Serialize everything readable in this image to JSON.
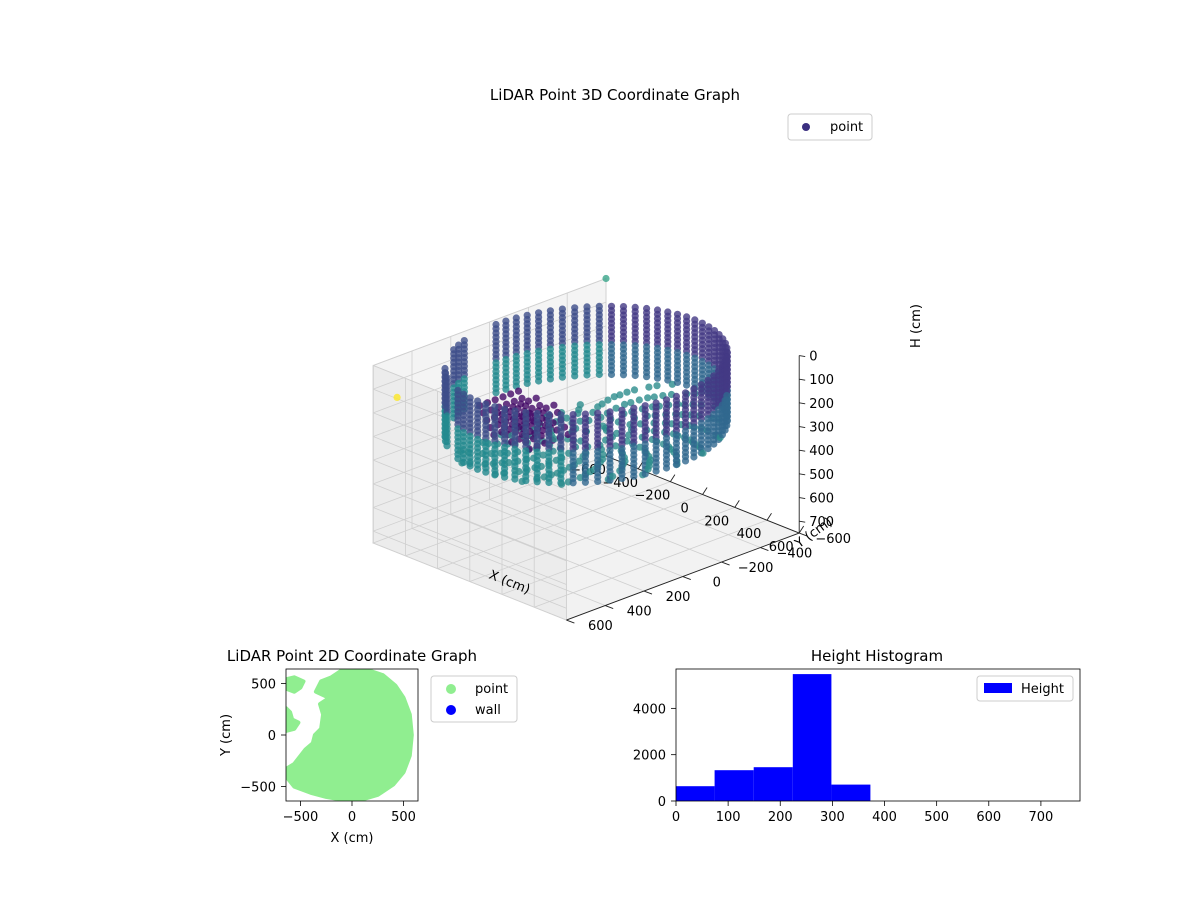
{
  "chart_data": [
    {
      "type": "scatter3d",
      "title": "LiDAR Point 3D Coordinate Graph",
      "xlabel": "X (cm)",
      "ylabel": "Y (cm)",
      "zlabel": "H (cm)",
      "xlim": [
        -600,
        600
      ],
      "ylim": [
        -600,
        600
      ],
      "zlim": [
        750,
        0
      ],
      "zinverted": true,
      "xticks": [
        -600,
        -400,
        -200,
        0,
        200,
        400,
        600
      ],
      "yticks": [
        -600,
        -400,
        -200,
        0,
        200,
        400,
        600
      ],
      "zticks": [
        0,
        100,
        200,
        300,
        400,
        500,
        600,
        700
      ],
      "grid": true,
      "colormap": "viridis",
      "legend": {
        "placement": "upper-right",
        "entries": [
          {
            "label": "point",
            "color": "#3b2f80"
          }
        ]
      },
      "ring": {
        "radius_cm": 560,
        "height_range_cm": [
          0,
          300
        ],
        "front_color": "#3b3f87",
        "back_color": "#26838e"
      },
      "outliers": [
        {
          "x": -500,
          "y": 560,
          "h": 120,
          "color": "#fde725"
        },
        {
          "x": -600,
          "y": -600,
          "h": 0,
          "color": "#3aa58a"
        }
      ]
    },
    {
      "type": "scatter",
      "title": "LiDAR Point 2D Coordinate Graph",
      "xlabel": "X (cm)",
      "ylabel": "Y (cm)",
      "xlim": [
        -640,
        640
      ],
      "ylim": [
        -640,
        640
      ],
      "xticks": [
        -500,
        0,
        500
      ],
      "yticks": [
        -500,
        0,
        500
      ],
      "legend": {
        "placement": "outside-right",
        "entries": [
          {
            "label": "point",
            "color": "#90ee90"
          },
          {
            "label": "wall",
            "color": "#0000ff"
          }
        ]
      },
      "regions": [
        {
          "label": "point",
          "color": "#90ee90",
          "polygon": [
            [
              0,
              640
            ],
            [
              150,
              630
            ],
            [
              300,
              580
            ],
            [
              420,
              480
            ],
            [
              500,
              360
            ],
            [
              560,
              200
            ],
            [
              580,
              0
            ],
            [
              560,
              -200
            ],
            [
              500,
              -360
            ],
            [
              400,
              -480
            ],
            [
              250,
              -580
            ],
            [
              80,
              -630
            ],
            [
              -80,
              -630
            ],
            [
              -250,
              -600
            ],
            [
              -400,
              -560
            ],
            [
              -560,
              -500
            ],
            [
              -640,
              -400
            ],
            [
              -640,
              -330
            ],
            [
              -560,
              -280
            ],
            [
              -450,
              -140
            ],
            [
              -380,
              -80
            ],
            [
              -360,
              0
            ],
            [
              -300,
              60
            ],
            [
              -280,
              200
            ],
            [
              -310,
              300
            ],
            [
              -220,
              360
            ],
            [
              -350,
              420
            ],
            [
              -300,
              520
            ],
            [
              -200,
              560
            ],
            [
              -140,
              600
            ],
            [
              -80,
              640
            ]
          ]
        },
        {
          "label": "point",
          "color": "#90ee90",
          "polygon": [
            [
              -640,
              260
            ],
            [
              -600,
              220
            ],
            [
              -580,
              150
            ],
            [
              -520,
              120
            ],
            [
              -560,
              60
            ],
            [
              -640,
              40
            ]
          ]
        },
        {
          "label": "point",
          "color": "#90ee90",
          "polygon": [
            [
              -640,
              540
            ],
            [
              -560,
              560
            ],
            [
              -470,
              520
            ],
            [
              -500,
              460
            ],
            [
              -560,
              420
            ],
            [
              -640,
              450
            ]
          ]
        }
      ]
    },
    {
      "type": "bar",
      "title": "Height Histogram",
      "xlabel": "",
      "ylabel": "",
      "xlim": [
        0,
        775
      ],
      "ylim": [
        0,
        5700
      ],
      "xticks": [
        0,
        100,
        200,
        300,
        400,
        500,
        600,
        700
      ],
      "yticks": [
        0,
        2000,
        4000
      ],
      "legend": {
        "placement": "upper-right",
        "entries": [
          {
            "label": "Height",
            "color": "#0000ff"
          }
        ]
      },
      "bin_edges": [
        0,
        74,
        149,
        224,
        298,
        373,
        447,
        522,
        596,
        671,
        745
      ],
      "values": [
        640,
        1330,
        1460,
        5480,
        710,
        0,
        0,
        0,
        0,
        0
      ],
      "color": "#0000ff"
    }
  ]
}
